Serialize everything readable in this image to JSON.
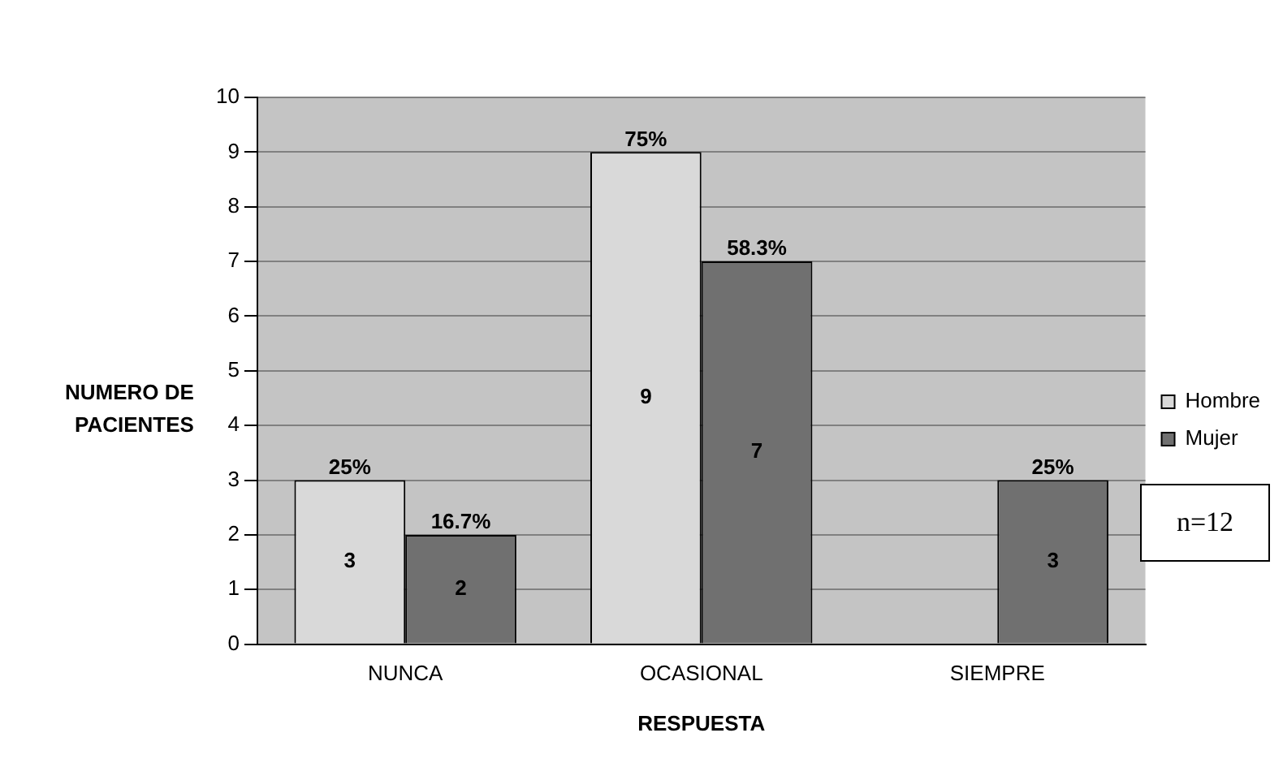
{
  "chart_data": {
    "type": "bar",
    "xlabel": "RESPUESTA",
    "ylabel": "NUMERO DE\nPACIENTES",
    "categories": [
      "NUNCA",
      "OCASIONAL",
      "SIEMPRE"
    ],
    "series": [
      {
        "name": "Hombre",
        "color": "#d9d9d9",
        "values": [
          3,
          9,
          null
        ],
        "value_labels": [
          "3",
          "9",
          null
        ]
      },
      {
        "name": "Mujer",
        "color": "#707070",
        "values": [
          2,
          7,
          3
        ],
        "value_labels": [
          "2",
          "7",
          "3"
        ]
      }
    ],
    "ylim": [
      0,
      10
    ],
    "yticks": [
      0,
      1,
      2,
      3,
      4,
      5,
      6,
      7,
      8,
      9,
      10
    ],
    "grid": "y",
    "legend": "right",
    "annotations": [
      {
        "text": "25%",
        "x": "NUNCA",
        "y": 3
      },
      {
        "text": "16.7%",
        "x": "NUNCA",
        "y": 2
      },
      {
        "text": "75%",
        "x": "OCASIONAL",
        "y": 9
      },
      {
        "text": "58.3%",
        "x": "OCASIONAL",
        "y": 7
      },
      {
        "text": "25%",
        "x": "SIEMPRE",
        "y": 3
      },
      "n=12"
    ]
  }
}
